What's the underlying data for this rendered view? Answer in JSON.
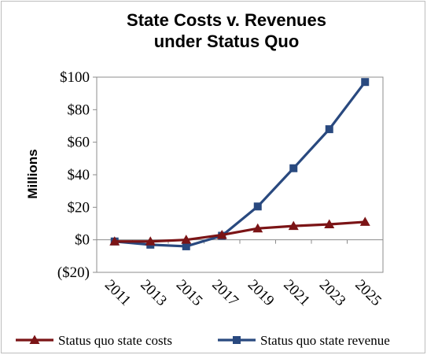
{
  "chart_data": {
    "type": "line",
    "title_lines": [
      "State Costs v. Revenues",
      "under Status Quo"
    ],
    "ylabel": "Millions",
    "xlabel": "",
    "categories": [
      "2011",
      "2013",
      "2015",
      "2017",
      "2019",
      "2021",
      "2023",
      "2025"
    ],
    "ylim": [
      -20,
      100
    ],
    "yticks": [
      -20,
      0,
      20,
      40,
      60,
      80,
      100
    ],
    "ytick_labels": [
      "($20)",
      "$0",
      "$20",
      "$40",
      "$60",
      "$80",
      "$100"
    ],
    "grid": false,
    "legend_position": "bottom",
    "series": [
      {
        "name": "Status quo state costs",
        "color": "#7b1416",
        "marker": "triangle",
        "values": [
          -1,
          -1,
          0,
          3,
          7,
          8.5,
          9.5,
          11
        ]
      },
      {
        "name": "Status quo state revenue",
        "color": "#29497f",
        "marker": "square",
        "values": [
          -1,
          -3,
          -4,
          2.5,
          20.5,
          44,
          68,
          97
        ]
      }
    ]
  }
}
